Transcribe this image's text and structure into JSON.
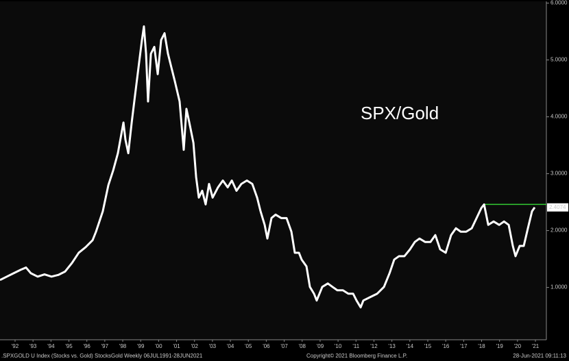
{
  "chart_data": {
    "type": "line",
    "annotation": "SPX/Gold",
    "footer_left": ".SPXGOLD U Index (Stocks vs. Gold) StocksGold  Weekly 06JUL1991-28JUN2021",
    "footer_center": "Copyright© 2021 Bloomberg Finance L.P.",
    "footer_right": "28-Jun-2021 09:11:13",
    "color": "#ffffff",
    "x": [
      1991.66,
      1992.04,
      1992.42,
      1992.81,
      1993.11,
      1993.38,
      1993.76,
      1994.14,
      1994.53,
      1994.91,
      1995.29,
      1995.67,
      1996.05,
      1996.44,
      1996.82,
      1997.01,
      1997.39,
      1997.7,
      1997.97,
      1998.23,
      1998.54,
      1998.65,
      1998.81,
      1999.0,
      1999.19,
      1999.38,
      1999.57,
      1999.68,
      1999.8,
      1999.91,
      2000.07,
      2000.26,
      2000.45,
      2000.64,
      2000.83,
      2001.02,
      2001.21,
      2001.4,
      2001.67,
      2001.9,
      2002.05,
      2002.21,
      2002.44,
      2002.59,
      2002.74,
      2002.93,
      2003.12,
      2003.31,
      2003.51,
      2003.81,
      2004.08,
      2004.35,
      2004.58,
      2004.84,
      2005.11,
      2005.42,
      2005.72,
      2005.99,
      2006.18,
      2006.41,
      2006.56,
      2006.79,
      2007.02,
      2007.33,
      2007.63,
      2007.9,
      2008.09,
      2008.32,
      2008.47,
      2008.74,
      2008.93,
      2009.16,
      2009.31,
      2009.62,
      2009.93,
      2010.19,
      2010.46,
      2010.77,
      2011.07,
      2011.34,
      2011.53,
      2011.76,
      2011.91,
      2012.29,
      2012.68,
      2013.06,
      2013.37,
      2013.63,
      2013.9,
      2014.2,
      2014.51,
      2014.78,
      2015.04,
      2015.35,
      2015.65,
      2015.92,
      2016.19,
      2016.5,
      2016.8,
      2017.07,
      2017.34,
      2017.64,
      2017.95,
      2018.22,
      2018.49,
      2018.64,
      2018.87,
      2019.17,
      2019.48,
      2019.75,
      2020.01,
      2020.24,
      2020.39,
      2020.62,
      2020.85,
      2021.08,
      2021.31,
      2021.46
    ],
    "values": [
      1.13,
      1.19,
      1.25,
      1.31,
      1.35,
      1.25,
      1.19,
      1.23,
      1.19,
      1.22,
      1.28,
      1.43,
      1.61,
      1.71,
      1.83,
      1.98,
      2.34,
      2.8,
      3.06,
      3.36,
      3.9,
      3.6,
      3.36,
      3.9,
      4.39,
      4.87,
      5.35,
      5.59,
      5.11,
      4.27,
      5.11,
      5.23,
      4.75,
      5.35,
      5.47,
      5.11,
      4.87,
      4.63,
      4.27,
      3.42,
      4.14,
      3.9,
      3.54,
      2.94,
      2.58,
      2.7,
      2.46,
      2.82,
      2.58,
      2.76,
      2.88,
      2.76,
      2.88,
      2.7,
      2.82,
      2.88,
      2.82,
      2.58,
      2.34,
      2.1,
      1.86,
      2.22,
      2.28,
      2.22,
      2.22,
      1.98,
      1.61,
      1.61,
      1.49,
      1.37,
      1.01,
      0.89,
      0.77,
      1.01,
      1.07,
      1.01,
      0.95,
      0.95,
      0.89,
      0.89,
      0.77,
      0.65,
      0.77,
      0.83,
      0.89,
      1.01,
      1.25,
      1.49,
      1.55,
      1.55,
      1.67,
      1.8,
      1.86,
      1.8,
      1.8,
      1.92,
      1.67,
      1.61,
      1.92,
      2.04,
      1.98,
      1.98,
      2.04,
      2.22,
      2.4,
      2.46,
      2.1,
      2.16,
      2.1,
      2.16,
      2.1,
      1.73,
      1.55,
      1.73,
      1.73,
      2.04,
      2.34,
      2.4074
    ],
    "last_value_label": "2.4074",
    "reference_line": {
      "value": 2.46,
      "from": 2018.64,
      "color": "#33cc33"
    },
    "xlim": [
      1991.66,
      2022.11
    ],
    "ylim": [
      0.08,
      6.03
    ],
    "yticks": [
      {
        "value": 1,
        "label": "1.0000"
      },
      {
        "value": 2,
        "label": "2.0000"
      },
      {
        "value": 3,
        "label": "3.0000"
      },
      {
        "value": 4,
        "label": "4.0000"
      },
      {
        "value": 5,
        "label": "5.0000"
      },
      {
        "value": 6,
        "label": "6.0000"
      }
    ],
    "xticks": [
      {
        "value": 1992.5,
        "label": "'92"
      },
      {
        "value": 1993.5,
        "label": "'93"
      },
      {
        "value": 1994.5,
        "label": "'94"
      },
      {
        "value": 1995.5,
        "label": "'95"
      },
      {
        "value": 1996.5,
        "label": "'96"
      },
      {
        "value": 1997.5,
        "label": "'97"
      },
      {
        "value": 1998.5,
        "label": "'98"
      },
      {
        "value": 1999.5,
        "label": "'99"
      },
      {
        "value": 2000.5,
        "label": "'00"
      },
      {
        "value": 2001.5,
        "label": "'01"
      },
      {
        "value": 2002.5,
        "label": "'02"
      },
      {
        "value": 2003.5,
        "label": "'03"
      },
      {
        "value": 2004.5,
        "label": "'04"
      },
      {
        "value": 2005.5,
        "label": "'05"
      },
      {
        "value": 2006.5,
        "label": "'06"
      },
      {
        "value": 2007.5,
        "label": "'07"
      },
      {
        "value": 2008.5,
        "label": "'08"
      },
      {
        "value": 2009.5,
        "label": "'09"
      },
      {
        "value": 2010.5,
        "label": "'10"
      },
      {
        "value": 2011.5,
        "label": "'11"
      },
      {
        "value": 2012.5,
        "label": "'12"
      },
      {
        "value": 2013.5,
        "label": "'13"
      },
      {
        "value": 2014.5,
        "label": "'14"
      },
      {
        "value": 2015.5,
        "label": "'15"
      },
      {
        "value": 2016.5,
        "label": "'16"
      },
      {
        "value": 2017.5,
        "label": "'17"
      },
      {
        "value": 2018.5,
        "label": "'18"
      },
      {
        "value": 2019.5,
        "label": "'19"
      },
      {
        "value": 2020.5,
        "label": "'20"
      },
      {
        "value": 2021.5,
        "label": "'21"
      }
    ],
    "grid": false
  }
}
